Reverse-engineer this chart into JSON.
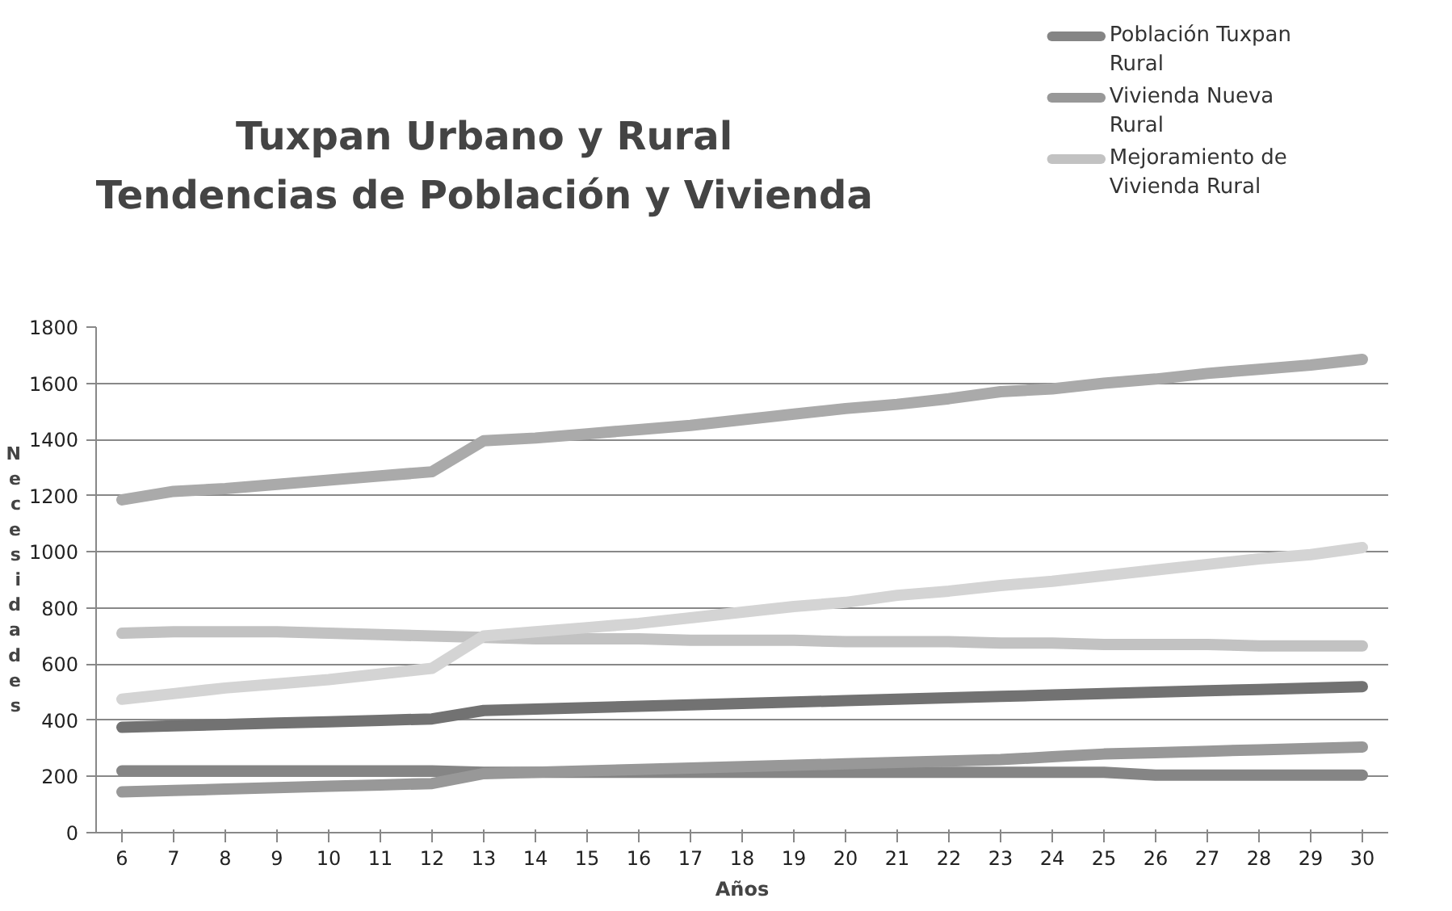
{
  "chart_data": {
    "type": "line",
    "title": "Tuxpan Urbano y Rural\nTendencias de Población y Vivienda",
    "xlabel": "Años",
    "ylabel": "Necesidades",
    "categories": [
      "6",
      "7",
      "8",
      "9",
      "10",
      "11",
      "12",
      "13",
      "14",
      "15",
      "16",
      "17",
      "18",
      "19",
      "20",
      "21",
      "22",
      "23",
      "24",
      "25",
      "26",
      "27",
      "28",
      "29",
      "30"
    ],
    "ylim": [
      0,
      1800
    ],
    "yticks": [
      0,
      200,
      400,
      600,
      800,
      1000,
      1200,
      1400,
      1600,
      1800
    ],
    "grid": "y",
    "legend": "top right",
    "marker": "none",
    "line_style": "solid",
    "series": [
      {
        "name": "Población Tuxpan Rural",
        "color": "#858585",
        "values": [
          220,
          220,
          220,
          220,
          220,
          220,
          220,
          215,
          215,
          215,
          215,
          215,
          215,
          215,
          215,
          215,
          215,
          215,
          215,
          215,
          205,
          205,
          205,
          205,
          205
        ]
      },
      {
        "name": "Vivienda Nueva Rural",
        "color": "#989898",
        "values": [
          145,
          150,
          155,
          160,
          165,
          170,
          175,
          210,
          215,
          220,
          225,
          230,
          235,
          240,
          245,
          250,
          255,
          260,
          270,
          280,
          285,
          290,
          295,
          300,
          305
        ]
      },
      {
        "name": "Mejoramiento de Vivienda Rural",
        "color": "#c2c2c2",
        "values": [
          710,
          715,
          715,
          715,
          710,
          705,
          700,
          695,
          690,
          690,
          690,
          685,
          685,
          685,
          680,
          680,
          680,
          675,
          675,
          670,
          670,
          670,
          665,
          665,
          665
        ]
      },
      {
        "color": "#727272",
        "values": [
          375,
          380,
          385,
          390,
          395,
          400,
          405,
          435,
          440,
          445,
          450,
          455,
          460,
          465,
          470,
          475,
          480,
          485,
          490,
          495,
          500,
          505,
          510,
          515,
          520
        ]
      },
      {
        "color": "#aaaaaa",
        "values": [
          1185,
          1215,
          1225,
          1240,
          1255,
          1270,
          1285,
          1395,
          1405,
          1420,
          1435,
          1450,
          1470,
          1490,
          1510,
          1525,
          1545,
          1570,
          1580,
          1600,
          1615,
          1635,
          1650,
          1665,
          1685
        ]
      },
      {
        "color": "#d4d4d4",
        "values": [
          475,
          495,
          515,
          530,
          545,
          565,
          585,
          700,
          715,
          730,
          745,
          765,
          785,
          805,
          820,
          845,
          860,
          880,
          895,
          915,
          935,
          955,
          975,
          990,
          1015
        ]
      }
    ]
  }
}
